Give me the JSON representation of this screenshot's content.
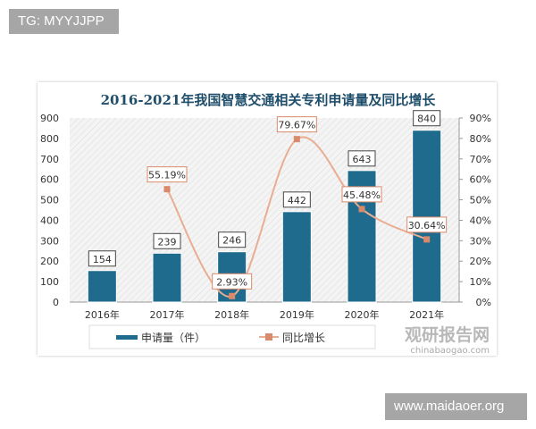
{
  "overlay": {
    "top_left_tag": "TG: MYYJJPP",
    "bottom_right_tag": "www.maidaoer.org"
  },
  "watermark": {
    "name": "观研报告网",
    "url": "chinabaogao.com"
  },
  "colors": {
    "bar": "#1f6b8e",
    "line": "#e9ad92",
    "marker": "#d98a6b",
    "title": "#1f4e6b"
  },
  "chart_data": {
    "type": "bar+line",
    "title": "2016-2021年我国智慧交通相关专利申请量及同比增长",
    "categories": [
      "2016年",
      "2017年",
      "2018年",
      "2019年",
      "2020年",
      "2021年"
    ],
    "left_axis": {
      "ylim": [
        0,
        900
      ],
      "ticks": [
        "0",
        "100",
        "200",
        "300",
        "400",
        "500",
        "600",
        "700",
        "800",
        "900"
      ]
    },
    "right_axis": {
      "ylim": [
        0,
        90
      ],
      "ticks": [
        "0%",
        "10%",
        "20%",
        "30%",
        "40%",
        "50%",
        "60%",
        "70%",
        "80%",
        "90%"
      ]
    },
    "series": [
      {
        "name": "申请量（件）",
        "type": "bar",
        "axis": "left",
        "values": [
          154,
          239,
          246,
          442,
          643,
          840
        ],
        "labels": [
          "154",
          "239",
          "246",
          "442",
          "643",
          "840"
        ]
      },
      {
        "name": "同比增长",
        "type": "line",
        "axis": "right",
        "values": [
          null,
          55.19,
          2.93,
          79.67,
          45.48,
          30.64
        ],
        "labels": [
          "",
          "55.19%",
          "2.93%",
          "79.67%",
          "45.48%",
          "30.64%"
        ]
      }
    ],
    "grid": false,
    "legend": "bottom"
  }
}
